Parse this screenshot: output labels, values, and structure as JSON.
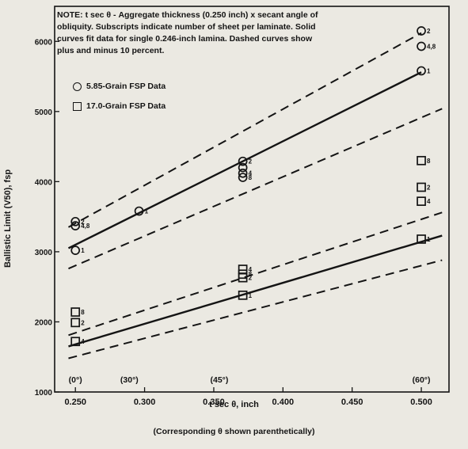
{
  "chart_data": {
    "type": "scatter",
    "note": "NOTE:  t sec θ - Aggregate thickness (0.250 inch) x secant angle of\nobliquity.  Subscripts indicate number of sheet per laminate.  Solid\ncurves fit data for single 0.246-inch lamina.  Dashed curves show\nplus and minus 10 percent.",
    "xlabel": "t sec θ,  inch",
    "ylabel": "Ballistic Limit (V50), fsp",
    "caption": "(Corresponding θ shown parenthetically)",
    "xlim": [
      0.235,
      0.52
    ],
    "ylim": [
      1000,
      6500
    ],
    "x_ticks": [
      0.25,
      0.3,
      0.35,
      0.4,
      0.45,
      0.5
    ],
    "x_tick_labels": [
      "0.250",
      "0.300",
      "0.350",
      "0.400",
      "0.450",
      "0.500"
    ],
    "y_ticks": [
      1000,
      2000,
      3000,
      4000,
      5000,
      6000
    ],
    "y_tick_labels": [
      "1000",
      "2000",
      "3000",
      "4000",
      "5000",
      "6000"
    ],
    "angle_labels": [
      {
        "x": 0.25,
        "text": "(0°)"
      },
      {
        "x": 0.289,
        "text": "(30°)"
      },
      {
        "x": 0.354,
        "text": "(45°)"
      },
      {
        "x": 0.5,
        "text": "(60°)"
      }
    ],
    "legend": [
      {
        "marker": "circle",
        "label": "5.85-Grain FSP Data"
      },
      {
        "marker": "square",
        "label": "17.0-Grain FSP Data"
      }
    ],
    "series": [
      {
        "name": "5.85-Grain FSP Data",
        "marker": "circle",
        "points": [
          {
            "x": 0.25,
            "y": 3430,
            "label": "2"
          },
          {
            "x": 0.25,
            "y": 3370,
            "label": "4,8"
          },
          {
            "x": 0.25,
            "y": 3020,
            "label": "1"
          },
          {
            "x": 0.296,
            "y": 3580,
            "label": "1"
          },
          {
            "x": 0.371,
            "y": 4290,
            "label": "2"
          },
          {
            "x": 0.371,
            "y": 4200,
            "label": ""
          },
          {
            "x": 0.371,
            "y": 4120,
            "label": "4"
          },
          {
            "x": 0.371,
            "y": 4060,
            "label": "8"
          },
          {
            "x": 0.5,
            "y": 6150,
            "label": "2"
          },
          {
            "x": 0.5,
            "y": 5930,
            "label": "4,8"
          },
          {
            "x": 0.5,
            "y": 5580,
            "label": "1"
          }
        ]
      },
      {
        "name": "17.0-Grain FSP Data",
        "marker": "square",
        "points": [
          {
            "x": 0.25,
            "y": 2140,
            "label": "8"
          },
          {
            "x": 0.25,
            "y": 1990,
            "label": "2"
          },
          {
            "x": 0.25,
            "y": 1720,
            "label": "4"
          },
          {
            "x": 0.371,
            "y": 2750,
            "label": "4"
          },
          {
            "x": 0.371,
            "y": 2680,
            "label": "8"
          },
          {
            "x": 0.371,
            "y": 2630,
            "label": "2"
          },
          {
            "x": 0.371,
            "y": 2380,
            "label": "1"
          },
          {
            "x": 0.5,
            "y": 4300,
            "label": "8"
          },
          {
            "x": 0.5,
            "y": 3920,
            "label": "2"
          },
          {
            "x": 0.5,
            "y": 3720,
            "label": "4"
          },
          {
            "x": 0.5,
            "y": 3180,
            "label": "1"
          }
        ]
      }
    ],
    "fit_lines": [
      {
        "style": "solid",
        "points": [
          [
            0.245,
            3050
          ],
          [
            0.5,
            5560
          ]
        ]
      },
      {
        "style": "dashed",
        "points": [
          [
            0.245,
            3350
          ],
          [
            0.5,
            6120
          ]
        ]
      },
      {
        "style": "dashed",
        "points": [
          [
            0.245,
            2760
          ],
          [
            0.515,
            5040
          ]
        ]
      },
      {
        "style": "solid",
        "points": [
          [
            0.245,
            1650
          ],
          [
            0.515,
            3230
          ]
        ]
      },
      {
        "style": "dashed",
        "points": [
          [
            0.245,
            1810
          ],
          [
            0.515,
            3560
          ]
        ]
      },
      {
        "style": "dashed",
        "points": [
          [
            0.245,
            1480
          ],
          [
            0.515,
            2880
          ]
        ]
      }
    ],
    "grid": false
  }
}
